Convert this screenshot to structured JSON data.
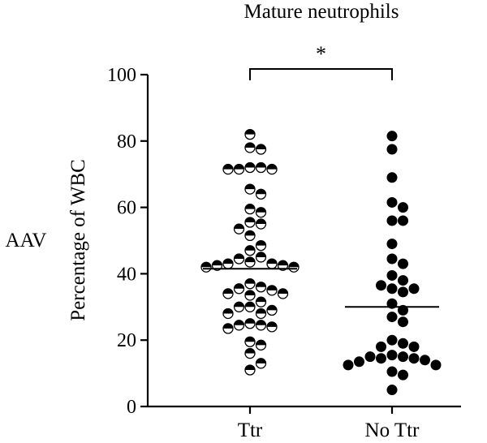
{
  "chart_data": {
    "type": "scatter",
    "title": "Mature neutrophils",
    "side_label": "AAV",
    "ylabel": "Percentage of WBC",
    "xlabel": "",
    "ylim": [
      0,
      100
    ],
    "yticks": [
      "0",
      "20",
      "40",
      "60",
      "80",
      "100"
    ],
    "categories": [
      "Ttr",
      "No Ttr"
    ],
    "significance": "*",
    "grid": false,
    "series": [
      {
        "category": "Ttr",
        "marker": "half-filled-circle",
        "mean": 41.5,
        "values": [
          82,
          77.5,
          78,
          71.5,
          71.5,
          72,
          72,
          71.5,
          65.5,
          64,
          59.5,
          58.5,
          55.5,
          53.5,
          55,
          51.5,
          48.5,
          47,
          45,
          44.5,
          43.5,
          42,
          42,
          42.5,
          42.5,
          43,
          43,
          37,
          36,
          35.5,
          35,
          34,
          34,
          33.5,
          31.5,
          30,
          30,
          29,
          28,
          28,
          25,
          24.5,
          24.5,
          24,
          23.5,
          19.5,
          18.5,
          16,
          13,
          11
        ]
      },
      {
        "category": "No Ttr",
        "marker": "filled-circle",
        "mean": 30,
        "values": [
          81.5,
          77.5,
          69,
          61.5,
          60,
          56,
          56,
          49,
          44.5,
          43,
          39.5,
          38,
          36.5,
          35.5,
          35.5,
          34.5,
          31,
          29,
          27,
          25.5,
          20,
          19,
          18,
          18,
          15.5,
          15,
          15,
          14.5,
          14.5,
          14,
          13.5,
          12.5,
          12.5,
          10.5,
          9.5,
          5
        ]
      }
    ]
  }
}
